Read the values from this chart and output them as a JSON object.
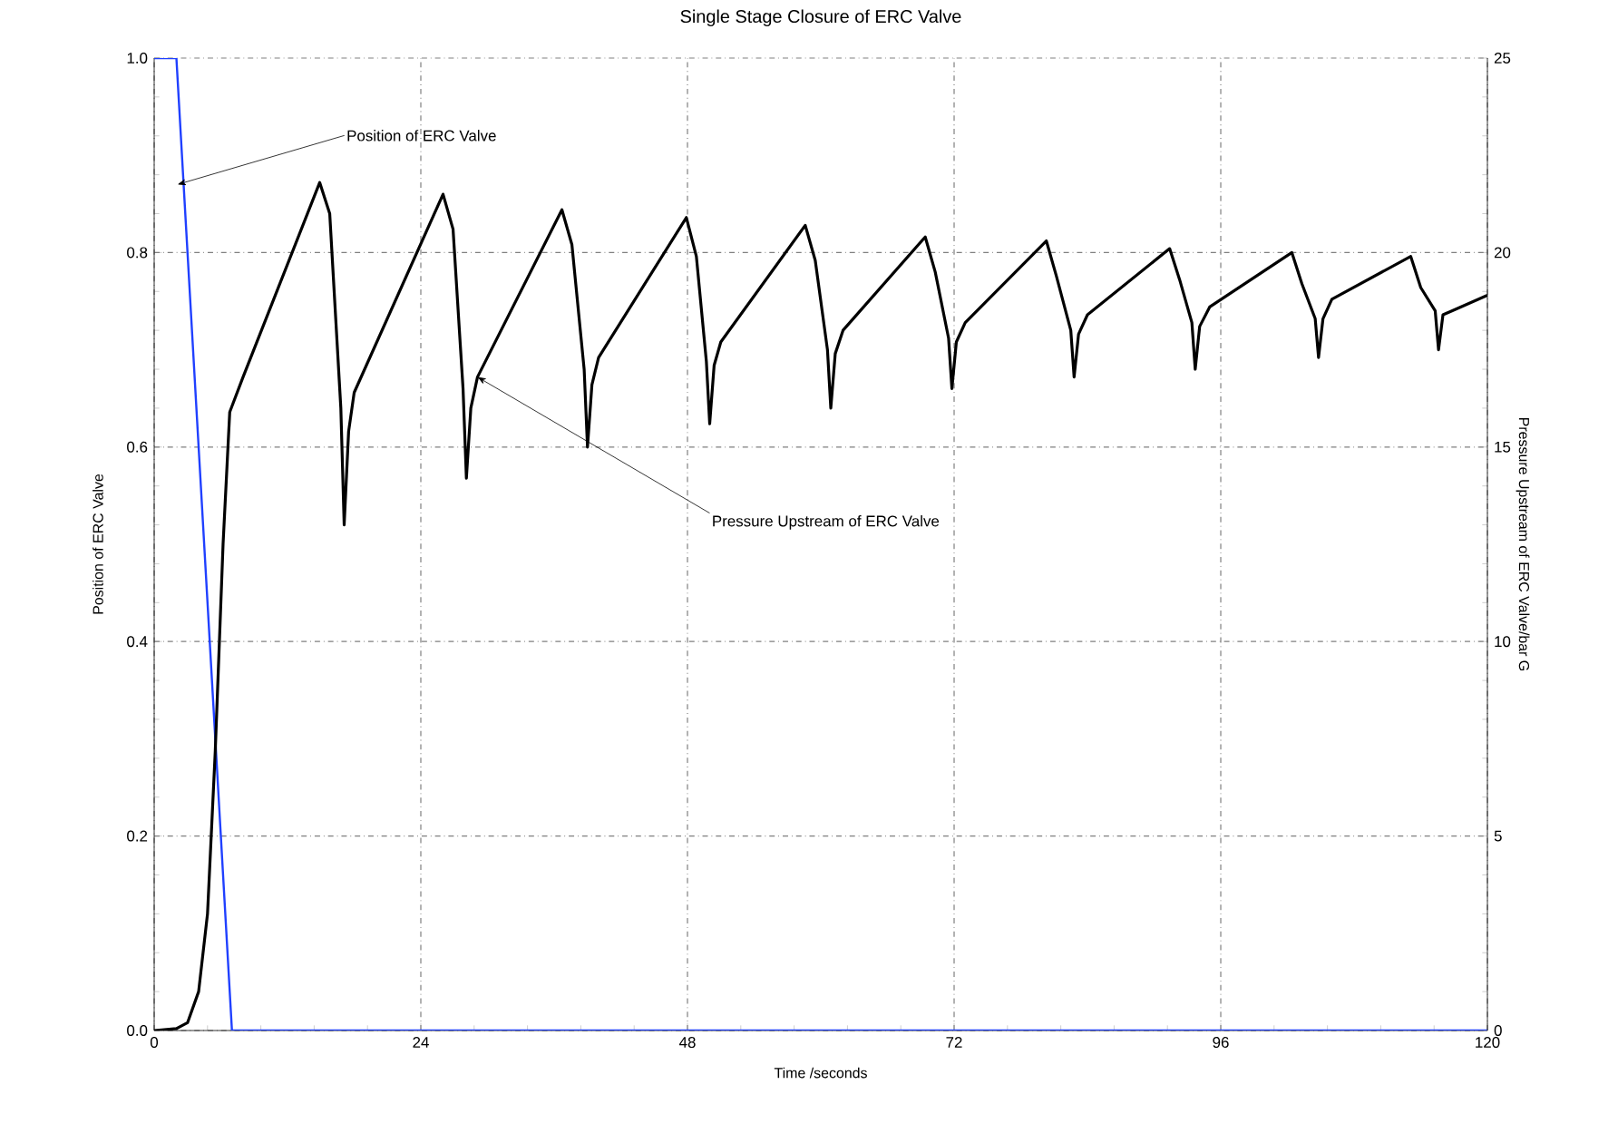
{
  "chart_data": {
    "type": "line",
    "title": "Single Stage Closure of ERC Valve",
    "xlabel": "Time /seconds",
    "ylabel": "Position of ERC Valve",
    "y2label": "Pressure Upstream of ERC Valve/bar G",
    "xlim": [
      0,
      120
    ],
    "xticks": [
      0,
      24,
      48,
      72,
      96,
      120
    ],
    "ylim": [
      0,
      1
    ],
    "yticks": [
      {
        "value": 0,
        "label": "0.0"
      },
      0.2,
      0.4,
      0.6,
      0.8,
      {
        "value": 1,
        "label": "1.0"
      }
    ],
    "y2lim": [
      0,
      25
    ],
    "y2ticks": [
      0,
      5,
      10,
      15,
      20,
      25
    ],
    "grid": true,
    "annotations": [
      {
        "text": "Position of ERC Valve",
        "x": 2.1,
        "y": 0.87
      },
      {
        "text": "Pressure Upstream of ERC Valve",
        "x": 29.1,
        "y": 0.672
      }
    ],
    "series": [
      {
        "color": "#2040ff",
        "x": [
          0,
          2,
          7,
          120
        ],
        "values": [
          1,
          1,
          0,
          0
        ]
      },
      {
        "color": "#000000",
        "axis": "y2",
        "x": [
          0,
          2,
          3,
          4,
          4.8,
          5.5,
          6.2,
          6.8,
          8,
          14.9,
          15.8,
          16.8,
          17.1,
          17.5,
          18.0,
          26.0,
          26.9,
          27.8,
          28.1,
          28.5,
          29.1,
          36.7,
          37.6,
          38.7,
          39.0,
          39.4,
          40.0,
          47.9,
          48.8,
          49.7,
          50.0,
          50.4,
          51.0,
          58.6,
          59.5,
          60.6,
          60.9,
          61.3,
          62.0,
          69.4,
          70.3,
          71.5,
          71.8,
          72.2,
          73.0,
          80.3,
          81.2,
          82.5,
          82.8,
          83.2,
          84.0,
          91.4,
          92.3,
          93.4,
          93.7,
          94.1,
          95.0,
          102.4,
          103.3,
          104.5,
          104.8,
          105.2,
          106.0,
          113.1,
          114.0,
          115.3,
          115.6,
          116.0,
          116.8,
          120
        ],
        "values": [
          0,
          0.05,
          0.2,
          1.0,
          3,
          7.2,
          12.5,
          15.9,
          16.8,
          21.8,
          21.0,
          16,
          13.0,
          15.4,
          16.4,
          21.5,
          20.6,
          16.5,
          14.2,
          16,
          16.8,
          21.1,
          20.2,
          17,
          15.0,
          16.6,
          17.3,
          20.9,
          19.9,
          17.2,
          15.6,
          17.1,
          17.7,
          20.7,
          19.8,
          17.5,
          16.0,
          17.4,
          18.0,
          20.4,
          19.5,
          17.8,
          16.5,
          17.7,
          18.2,
          20.3,
          19.4,
          18,
          16.8,
          17.9,
          18.4,
          20.1,
          19.3,
          18.2,
          17.0,
          18.1,
          18.6,
          20.0,
          19.2,
          18.3,
          17.3,
          18.3,
          18.8,
          19.9,
          19.1,
          18.5,
          17.5,
          18.4,
          18.5,
          18.9
        ]
      }
    ]
  }
}
